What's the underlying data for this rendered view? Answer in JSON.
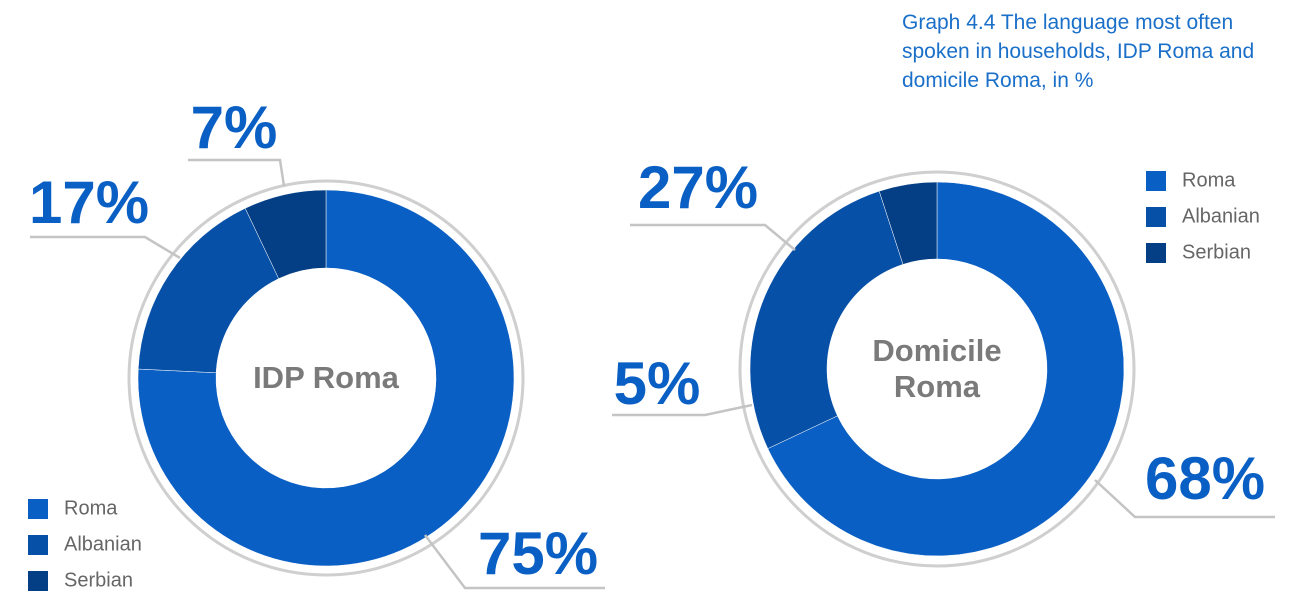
{
  "title": "Graph 4.4 The language most often spoken in households, IDP Roma and domicile Roma, in %",
  "chart_data": [
    {
      "type": "pie",
      "title": "IDP Roma",
      "categories": [
        "Roma",
        "Albanian",
        "Serbian"
      ],
      "values": [
        75,
        17,
        7
      ],
      "value_labels": [
        "75%",
        "17%",
        "7%"
      ],
      "colors": [
        "#0a5fc4",
        "#0750a8",
        "#043f86"
      ],
      "legend": "lower left"
    },
    {
      "type": "pie",
      "title": "Domicile Roma",
      "categories": [
        "Roma",
        "Albanian",
        "Serbian"
      ],
      "values": [
        68,
        27,
        5
      ],
      "value_labels": [
        "68%",
        "27%",
        "5%"
      ],
      "colors": [
        "#0a5fc4",
        "#0750a8",
        "#043f86"
      ],
      "legend": "upper right"
    }
  ]
}
